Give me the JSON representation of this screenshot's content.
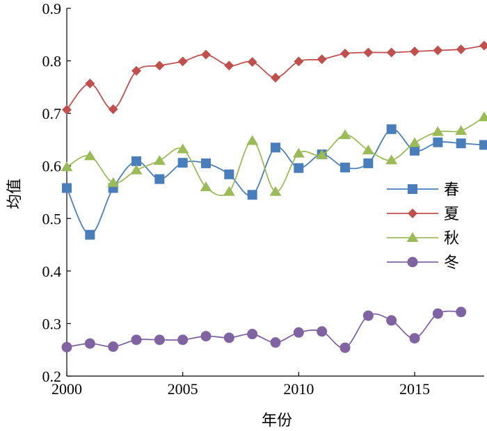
{
  "chart_data": {
    "type": "line",
    "xlabel": "年份",
    "ylabel": "均值",
    "xlim": [
      2000,
      2018
    ],
    "ylim": [
      0.2,
      0.9
    ],
    "x_ticks": [
      "2000",
      "2005",
      "2010",
      "2015"
    ],
    "y_ticks": [
      "0.2",
      "0.3",
      "0.4",
      "0.5",
      "0.6",
      "0.7",
      "0.8",
      "0.9"
    ],
    "grid": false,
    "legend_position": "right",
    "series": [
      {
        "name": "春",
        "color": "#4a7ebb",
        "marker": "square",
        "x": [
          2000,
          2001,
          2002,
          2003,
          2004,
          2005,
          2006,
          2007,
          2008,
          2009,
          2010,
          2011,
          2012,
          2013,
          2014,
          2015,
          2016,
          2017,
          2018
        ],
        "values": [
          0.558,
          0.469,
          0.558,
          0.609,
          0.575,
          0.606,
          0.605,
          0.584,
          0.545,
          0.635,
          0.596,
          0.622,
          0.597,
          0.605,
          0.67,
          0.629,
          0.645,
          0.643,
          0.64
        ]
      },
      {
        "name": "夏",
        "color": "#c0504d",
        "marker": "diamond",
        "x": [
          2000,
          2001,
          2002,
          2003,
          2004,
          2005,
          2006,
          2007,
          2008,
          2009,
          2010,
          2011,
          2012,
          2013,
          2014,
          2015,
          2016,
          2017,
          2018
        ],
        "values": [
          0.707,
          0.757,
          0.708,
          0.781,
          0.791,
          0.799,
          0.812,
          0.791,
          0.798,
          0.768,
          0.799,
          0.803,
          0.814,
          0.816,
          0.816,
          0.818,
          0.82,
          0.822,
          0.829
        ]
      },
      {
        "name": "秋",
        "color": "#9bbb59",
        "marker": "triangle",
        "x": [
          2000,
          2001,
          2002,
          2003,
          2004,
          2005,
          2006,
          2007,
          2008,
          2009,
          2010,
          2011,
          2012,
          2013,
          2014,
          2015,
          2016,
          2017,
          2018
        ],
        "values": [
          0.598,
          0.619,
          0.568,
          0.592,
          0.61,
          0.632,
          0.56,
          0.551,
          0.648,
          0.551,
          0.624,
          0.621,
          0.659,
          0.63,
          0.611,
          0.644,
          0.665,
          0.667,
          0.693
        ]
      },
      {
        "name": "冬",
        "color": "#8064a2",
        "marker": "circle",
        "x": [
          2000,
          2001,
          2002,
          2003,
          2004,
          2005,
          2006,
          2007,
          2008,
          2009,
          2010,
          2011,
          2012,
          2013,
          2014,
          2015,
          2016,
          2017
        ],
        "values": [
          0.255,
          0.262,
          0.256,
          0.269,
          0.269,
          0.269,
          0.276,
          0.273,
          0.28,
          0.264,
          0.283,
          0.285,
          0.254,
          0.315,
          0.306,
          0.272,
          0.319,
          0.322
        ]
      }
    ]
  }
}
